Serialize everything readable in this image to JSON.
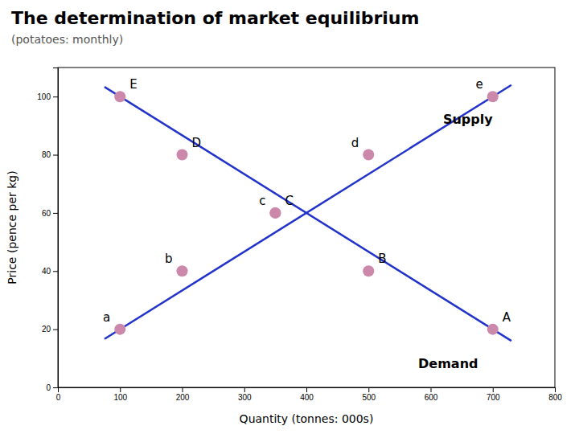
{
  "chart_data": {
    "type": "line",
    "title": "The determination of market equilibrium",
    "subtitle": "(potatoes: monthly)",
    "x_label": "Quantity (tonnes: 000s)",
    "y_label": "Price (pence per kg)",
    "xlim": [
      0,
      800
    ],
    "ylim": [
      0,
      110
    ],
    "xticks": [
      0,
      100,
      200,
      300,
      400,
      500,
      600,
      700,
      800
    ],
    "yticks": [
      0,
      20,
      40,
      60,
      80,
      100
    ],
    "series": [
      {
        "type": "line",
        "color": "#2233cc",
        "x": [
          75,
          730
        ],
        "values": [
          16.666666666666668,
          104
        ]
      },
      {
        "type": "line",
        "color": "#2233cc",
        "x": [
          75,
          730
        ],
        "values": [
          103.33333333333333,
          16
        ]
      },
      {
        "type": "scatter",
        "marker": "circle",
        "color": "#cc88aa",
        "x": [
          100,
          200,
          350,
          500,
          700
        ],
        "values": [
          20,
          40,
          60,
          80,
          100
        ],
        "labels": [
          "a",
          "b",
          "c",
          "d",
          "e"
        ]
      },
      {
        "type": "scatter",
        "marker": "circle",
        "color": "#cc88aa",
        "x": [
          100,
          200,
          350,
          500,
          700
        ],
        "values": [
          100,
          80,
          60,
          40,
          20
        ],
        "labels": [
          "E",
          "D",
          "C",
          "B",
          "A"
        ]
      }
    ],
    "annotations": [
      {
        "text": "Supply",
        "x": 620,
        "y": 92
      },
      {
        "text": "Demand",
        "x": 580,
        "y": 8
      }
    ]
  }
}
